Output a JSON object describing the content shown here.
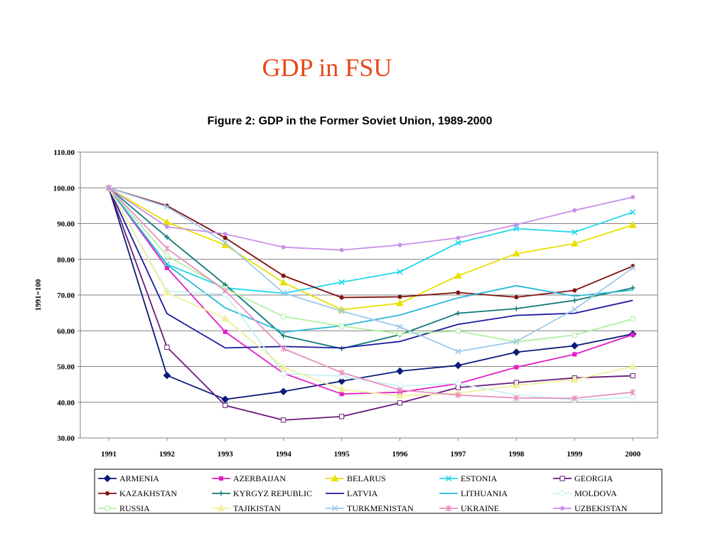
{
  "slide": {
    "title": "GDP in FSU"
  },
  "chart_data": {
    "type": "line",
    "title": "Figure 2: GDP in the Former Soviet Union, 1989-2000",
    "xlabel": "",
    "ylabel": "1991=100",
    "categories": [
      "1991",
      "1992",
      "1993",
      "1994",
      "1995",
      "1996",
      "1997",
      "1998",
      "1999",
      "2000"
    ],
    "ylim": [
      30,
      110
    ],
    "yticks": [
      "30.00",
      "40.00",
      "50.00",
      "60.00",
      "70.00",
      "80.00",
      "90.00",
      "100.00",
      "110.00"
    ],
    "grid": true,
    "legend_position": "bottom",
    "series": [
      {
        "name": "ARMENIA",
        "color": "#0a1a7a",
        "marker": "diamond",
        "values": [
          100,
          47.5,
          40.8,
          43,
          45.9,
          48.7,
          50.3,
          54,
          55.8,
          59.1
        ]
      },
      {
        "name": "AZERBAIJAN",
        "color": "#e020c8",
        "marker": "square",
        "values": [
          100,
          77.6,
          59.7,
          48.1,
          42.3,
          42.8,
          45.2,
          49.8,
          53.4,
          58.9
        ]
      },
      {
        "name": "BELARUS",
        "color": "#e8e000",
        "marker": "triangle",
        "values": [
          100,
          90.4,
          84,
          73.5,
          65.9,
          67.7,
          75.4,
          81.6,
          84.4,
          89.6
        ]
      },
      {
        "name": "ESTONIA",
        "color": "#20d8e8",
        "marker": "x",
        "values": [
          100,
          78.6,
          72,
          70.5,
          73.6,
          76.5,
          84.6,
          88.6,
          87.6,
          93.2
        ]
      },
      {
        "name": "GEORGIA",
        "color": "#6a1a7a",
        "marker": "square-open",
        "values": [
          100,
          55.4,
          39.1,
          35,
          36,
          39.8,
          44.1,
          45.5,
          46.8,
          47.4
        ]
      },
      {
        "name": "KAZAKHSTAN",
        "color": "#801010",
        "marker": "circle",
        "values": [
          100,
          95,
          86,
          75.4,
          69.3,
          69.5,
          70.7,
          69.4,
          71.3,
          78.1
        ]
      },
      {
        "name": "KYRGYZ REPUBLIC",
        "color": "#107878",
        "marker": "plus",
        "values": [
          100,
          86.2,
          72.9,
          58.6,
          55,
          58.9,
          64.9,
          66.2,
          68.5,
          72
        ]
      },
      {
        "name": "LATVIA",
        "color": "#1a1aa0",
        "marker": "none",
        "values": [
          100,
          64.8,
          55.2,
          55.6,
          55.2,
          57,
          61.8,
          64.3,
          64.9,
          68.5
        ]
      },
      {
        "name": "LITHUANIA",
        "color": "#28b8d8",
        "marker": "none",
        "values": [
          100,
          78.5,
          66.4,
          59.6,
          61.4,
          64.4,
          69.2,
          72.6,
          69.7,
          71.4
        ]
      },
      {
        "name": "MOLDOVA",
        "color": "#c8f0f0",
        "marker": "diamond-open",
        "values": [
          100,
          71.1,
          70.2,
          48,
          47.3,
          44.5,
          45.3,
          42,
          40.6,
          41.4
        ]
      },
      {
        "name": "RUSSIA",
        "color": "#b0f0a0",
        "marker": "square-open",
        "values": [
          100,
          81,
          71.8,
          64,
          61.3,
          59.2,
          59.9,
          56.9,
          58.8,
          63.3
        ]
      },
      {
        "name": "TAJIKISTAN",
        "color": "#f0f0a0",
        "marker": "triangle",
        "values": [
          100,
          70.7,
          63.4,
          49.8,
          43.6,
          41.8,
          42.5,
          44.7,
          46.3,
          50
        ]
      },
      {
        "name": "TURKMENISTAN",
        "color": "#a0c8e8",
        "marker": "x",
        "values": [
          100,
          94.7,
          84.7,
          70.6,
          65.5,
          61.1,
          54.2,
          57,
          66,
          77.6
        ]
      },
      {
        "name": "UKRAINE",
        "color": "#e890c0",
        "marker": "star",
        "values": [
          100,
          83,
          71.2,
          55,
          48.3,
          43.4,
          42,
          41.2,
          41.1,
          42.8
        ]
      },
      {
        "name": "UZBEKISTAN",
        "color": "#c890e8",
        "marker": "circle",
        "values": [
          100,
          89.1,
          87.1,
          83.4,
          82.6,
          84,
          86,
          89.7,
          93.7,
          97.4
        ]
      }
    ]
  }
}
